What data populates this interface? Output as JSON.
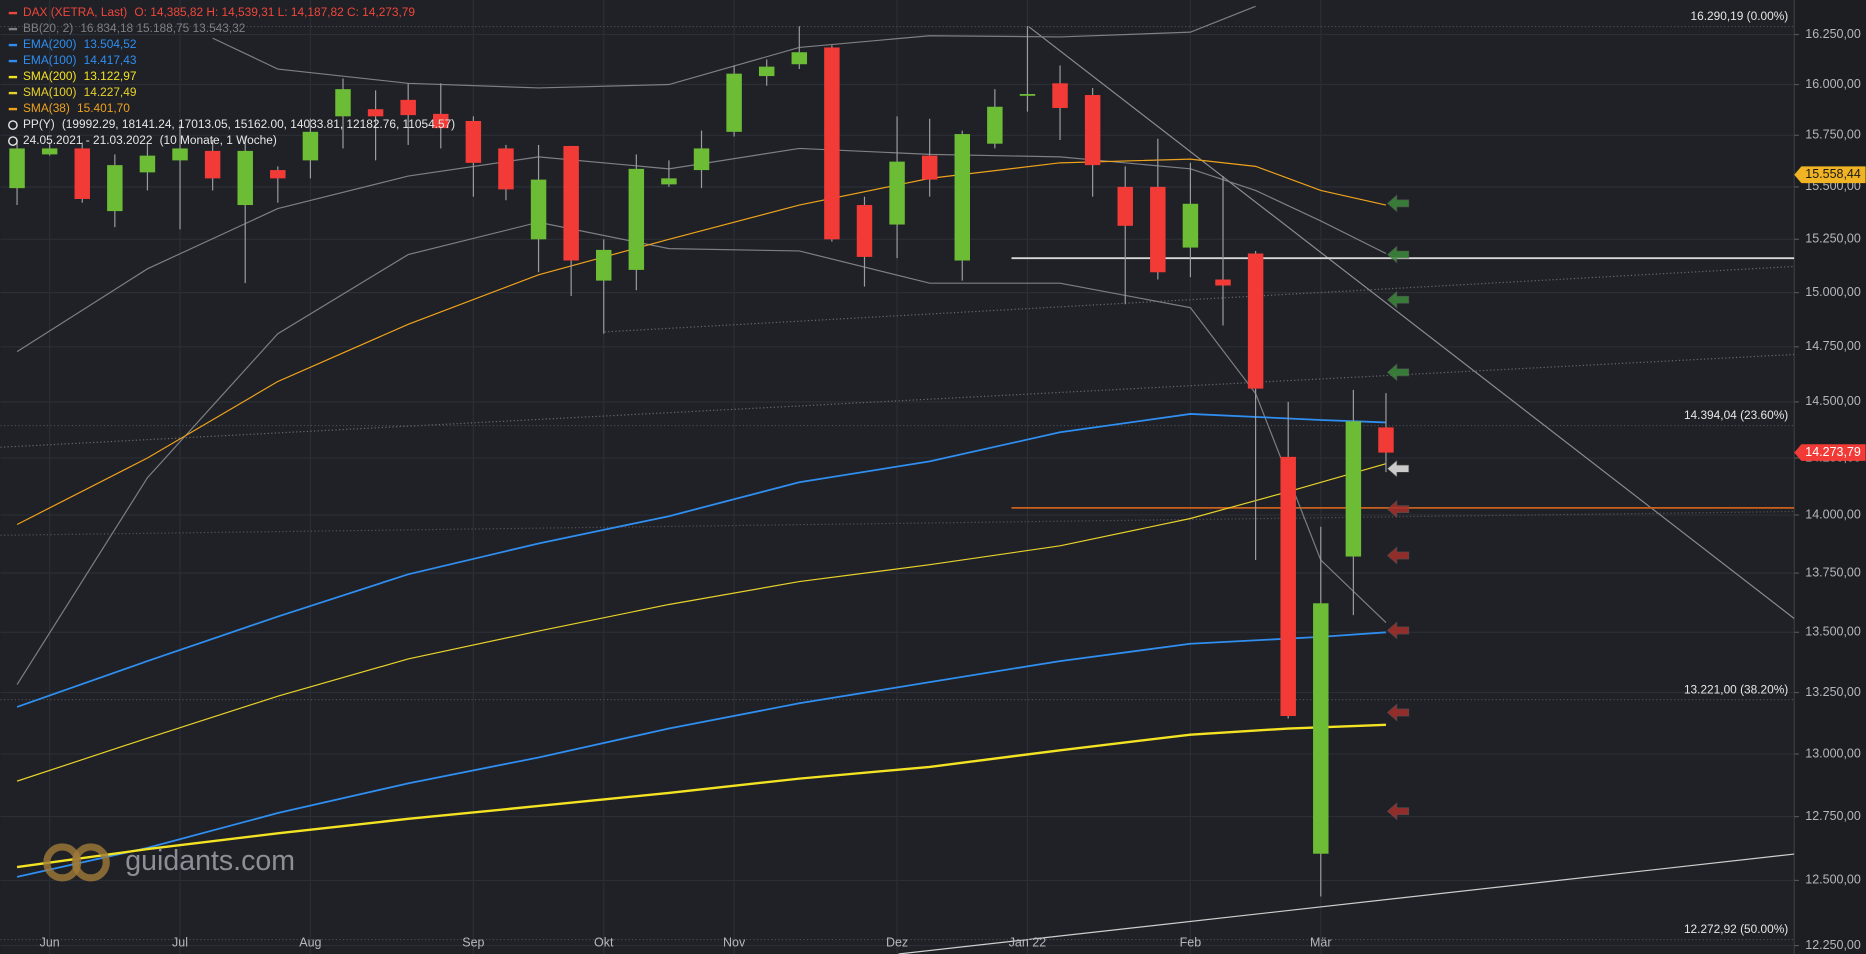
{
  "chart_data": {
    "type": "candlestick",
    "header": {
      "title": "DAX (XETRA, Last)",
      "ohlc": "O: 14,385,82  H: 14,539,31  L: 14,187,82  C: 14,273,79",
      "color": "#f0463c"
    },
    "categories": [
      null,
      "Jun",
      null,
      null,
      null,
      "Jul",
      null,
      null,
      null,
      "Aug",
      null,
      null,
      null,
      null,
      "Sep",
      null,
      null,
      null,
      "Okt",
      null,
      null,
      null,
      "Nov",
      null,
      null,
      null,
      null,
      "Dez",
      null,
      null,
      null,
      "Jan 22",
      null,
      null,
      null,
      null,
      "Feb",
      null,
      null,
      null,
      "Mär",
      null,
      null
    ],
    "open": [
      15494,
      15657,
      15686,
      15384,
      15570,
      15628,
      15674,
      15413,
      15581,
      15628,
      15843,
      15878,
      15924,
      15855,
      15820,
      15686,
      15250,
      15698,
      15056,
      15106,
      15512,
      15581,
      15767,
      16042,
      16101,
      16185,
      15413,
      15320,
      15651,
      15150,
      15709,
      15948,
      16006,
      15948,
      15500,
      15500,
      15211,
      15061,
      15183,
      14255,
      12604,
      13821,
      14385.82
    ],
    "high": [
      15727,
      15715,
      15715,
      15657,
      15715,
      15802,
      15727,
      15744,
      15599,
      15831,
      16030,
      15971,
      16006,
      16006,
      15843,
      15703,
      15703,
      15698,
      15250,
      15657,
      15628,
      15773,
      16095,
      16125,
      16292,
      16196,
      15453,
      15843,
      15831,
      15773,
      15977,
      16292,
      16095,
      15983,
      15599,
      15733,
      15616,
      15552,
      15195,
      14500,
      13949,
      14554,
      14539.31
    ],
    "low": [
      15413,
      15651,
      15424,
      15308,
      15483,
      15297,
      15483,
      15044,
      15424,
      15541,
      15686,
      15628,
      15703,
      15686,
      15453,
      15436,
      15095,
      14984,
      14810,
      15011,
      15500,
      15494,
      15744,
      15994,
      16077,
      15239,
      15028,
      15161,
      15453,
      15056,
      15686,
      15866,
      15727,
      15453,
      14946,
      15061,
      15072,
      14848,
      13806,
      13144,
      12438,
      13572,
      14187.82
    ],
    "close": [
      15686,
      15686,
      15442,
      15605,
      15651,
      15686,
      15541,
      15674,
      15541,
      15767,
      15977,
      15843,
      15849,
      15785,
      15616,
      15488,
      15535,
      15150,
      15200,
      15587,
      15541,
      15686,
      16054,
      16089,
      16161,
      15250,
      15167,
      15622,
      15535,
      15756,
      15890,
      15953,
      15884,
      15605,
      15314,
      15095,
      15419,
      15033,
      14560,
      13154,
      13622,
      14413,
      14273.79
    ],
    "up_color": "#6cbd35",
    "down_color": "#f23b36",
    "indicators": [
      {
        "name": "BB(20, 2)",
        "value_text": "16.834,18  15.188,75  13.543,32",
        "color": "#7d7f84",
        "lines": [
          {
            "x": [
              6,
              8,
              12,
              16,
              20,
              24,
              28,
              32,
              36,
              38
            ],
            "values": [
              16232,
              16077,
              16006,
              15983,
              16000,
              16185,
              16244,
              16238,
              16262,
              16393
            ]
          },
          {
            "x": [
              0,
              4,
              8,
              12,
              16,
              20,
              24,
              28,
              32,
              36,
              38,
              40,
              42
            ],
            "values": [
              14728,
              15111,
              15396,
              15552,
              15645,
              15587,
              15686,
              15657,
              15645,
              15587,
              15483,
              15337,
              15183
            ]
          },
          {
            "x": [
              0,
              4,
              8,
              12,
              16,
              20,
              24,
              28,
              32,
              36,
              38,
              40,
              42
            ],
            "values": [
              13283,
              14163,
              14810,
              15178,
              15331,
              15206,
              15195,
              15044,
              15044,
              14930,
              14538,
              13806,
              13541
            ]
          }
        ]
      },
      {
        "name": "EMA(200)",
        "value_text": "13.504,52",
        "color": "#2f8ef0",
        "lines": [
          {
            "x": [
              0,
              4,
              8,
              12,
              16,
              20,
              24,
              28,
              32,
              36,
              40,
              42
            ],
            "values": [
              12514,
              12627,
              12764,
              12882,
              12986,
              13103,
              13206,
              13293,
              13380,
              13452,
              13481,
              13500
            ]
          }
        ]
      },
      {
        "name": "EMA(100)",
        "value_text": "14.417,43",
        "color": "#2f8ef0",
        "lines": [
          {
            "x": [
              0,
              4,
              8,
              12,
              16,
              20,
              24,
              28,
              32,
              36,
              40,
              42
            ],
            "values": [
              13191,
              13380,
              13566,
              13745,
              13877,
              13995,
              14143,
              14235,
              14364,
              14446,
              14419,
              14408
            ]
          }
        ]
      },
      {
        "name": "SMA(200)",
        "value_text": "13.122,97",
        "color": "#f4e323",
        "lines": [
          {
            "x": [
              0,
              4,
              8,
              12,
              16,
              20,
              24,
              28,
              32,
              36,
              39,
              42
            ],
            "values": [
              12552,
              12622,
              12684,
              12741,
              12792,
              12844,
              12901,
              12948,
              13015,
              13078,
              13103,
              13118
            ]
          }
        ]
      },
      {
        "name": "SMA(100)",
        "value_text": "14.227,49",
        "color": "#e8d22a",
        "lines": [
          {
            "x": [
              0,
              4,
              8,
              12,
              16,
              20,
              24,
              28,
              32,
              36,
              39,
              42
            ],
            "values": [
              12891,
              13064,
              13235,
              13389,
              13505,
              13617,
              13714,
              13786,
              13867,
              13985,
              14102,
              14225
            ]
          }
        ]
      },
      {
        "name": "SMA(38)",
        "value_text": "15.401,70",
        "color": "#eea21c",
        "lines": [
          {
            "x": [
              0,
              4,
              8,
              12,
              16,
              20,
              24,
              28,
              32,
              36,
              38,
              40,
              42
            ],
            "values": [
              13959,
              14250,
              14592,
              14853,
              15083,
              15250,
              15413,
              15541,
              15616,
              15634,
              15599,
              15483,
              15413
            ]
          }
        ]
      }
    ],
    "pivot": {
      "name": "PP(Y)",
      "value_text": "(19992.29, 18141.24, 17013.05, 15162.00, 14033.81, 12182.76, 11054.57)",
      "color": "#e6e6e6"
    },
    "period": {
      "range": "24.05.2021 - 21.03.2022",
      "length": "(10 Monate, 1 Woche)",
      "color": "#e6e6e6"
    },
    "levels": [
      {
        "value": 15161,
        "color": "#d8d8d8"
      },
      {
        "value": 14031,
        "color": "#c8611e"
      }
    ],
    "fib_levels": [
      {
        "value": 16290.19,
        "label": "16.290,19 (0.00%)"
      },
      {
        "value": 14394.04,
        "label": "14.394,04 (23.60%)"
      },
      {
        "value": 13221,
        "label": "13.221,00 (38.20%)"
      },
      {
        "value": 12272.92,
        "label": "12.272,92 (50.00%)"
      }
    ],
    "price_tags": [
      {
        "value": 15558.44,
        "label": "15.558,44",
        "color": "#f0b323"
      },
      {
        "value": 14273.79,
        "label": "14.273,79",
        "color": "#f23b36"
      }
    ],
    "log_scale": true,
    "ylim": [
      12218,
      16425
    ],
    "yticks": [
      {
        "value": 16250,
        "label": "16.250,00"
      },
      {
        "value": 16000,
        "label": "16.000,00"
      },
      {
        "value": 15750,
        "label": "15.750,00"
      },
      {
        "value": 15500,
        "label": "15.500,00"
      },
      {
        "value": 15250,
        "label": "15.250,00"
      },
      {
        "value": 15000,
        "label": "15.000,00"
      },
      {
        "value": 14750,
        "label": "14.750,00"
      },
      {
        "value": 14500,
        "label": "14.500,00"
      },
      {
        "value": 14250,
        "label": "14.250,00"
      },
      {
        "value": 14000,
        "label": "14.000,00"
      },
      {
        "value": 13750,
        "label": "13.750,00"
      },
      {
        "value": 13500,
        "label": "13.500,00"
      },
      {
        "value": 13250,
        "label": "13.250,00"
      },
      {
        "value": 13000,
        "label": "13.000,00"
      },
      {
        "value": 12750,
        "label": "12.750,00"
      },
      {
        "value": 12500,
        "label": "12.500,00"
      },
      {
        "value": 12250,
        "label": "12.250,00"
      }
    ],
    "grid": true,
    "watermark": "guidants.com"
  }
}
